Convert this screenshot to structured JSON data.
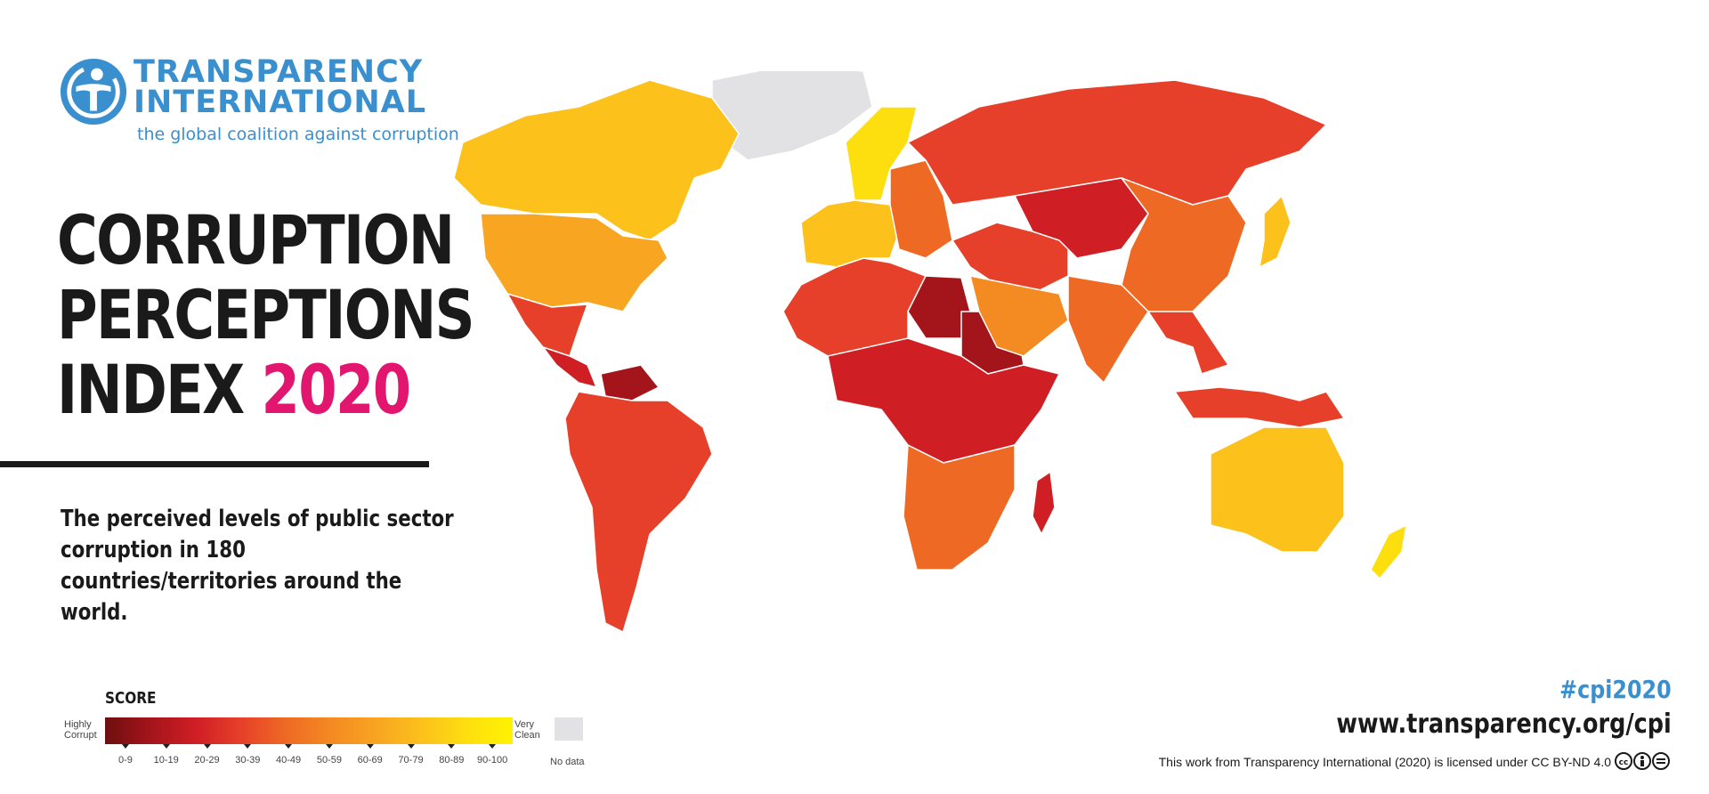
{
  "organization": {
    "name_line1": "TRANSPARENCY",
    "name_line2": "INTERNATIONAL",
    "tagline": "the global coalition against corruption",
    "brand_color": "#3a8fce",
    "icon": "transparency-logo-icon"
  },
  "title": {
    "line1": "CORRUPTION",
    "line2": "PERCEPTIONS",
    "line3_prefix": "INDEX",
    "year": "2020",
    "year_color": "#e3166f"
  },
  "description": "The perceived levels of public sector corruption in 180 countries/territories around the world.",
  "legend": {
    "title": "SCORE",
    "low_label": "Highly Corrupt",
    "high_label": "Very Clean",
    "no_data_label": "No data",
    "no_data_color": "#e2e2e4",
    "ranges": [
      {
        "label": "0-9",
        "color": "#6e0f0f"
      },
      {
        "label": "10-19",
        "color": "#a4141b"
      },
      {
        "label": "20-29",
        "color": "#d01e25"
      },
      {
        "label": "30-39",
        "color": "#e6402a"
      },
      {
        "label": "40-49",
        "color": "#ee6a24"
      },
      {
        "label": "50-59",
        "color": "#f48a22"
      },
      {
        "label": "60-69",
        "color": "#f8a521"
      },
      {
        "label": "70-79",
        "color": "#fcc11b"
      },
      {
        "label": "80-89",
        "color": "#fddf0f"
      },
      {
        "label": "90-100",
        "color": "#fff200"
      }
    ]
  },
  "map": {
    "regions": [
      {
        "name": "Canada",
        "range": "70-79"
      },
      {
        "name": "United States",
        "range": "60-69"
      },
      {
        "name": "Mexico",
        "range": "30-39"
      },
      {
        "name": "Central America",
        "range": "20-29"
      },
      {
        "name": "Venezuela",
        "range": "10-19"
      },
      {
        "name": "South America",
        "range": "30-39"
      },
      {
        "name": "Greenland",
        "range": "no-data"
      },
      {
        "name": "Nordic countries",
        "range": "80-89"
      },
      {
        "name": "Western Europe",
        "range": "70-79"
      },
      {
        "name": "Eastern Europe",
        "range": "40-49"
      },
      {
        "name": "Russia",
        "range": "30-39"
      },
      {
        "name": "North Africa",
        "range": "30-39"
      },
      {
        "name": "Libya",
        "range": "10-19"
      },
      {
        "name": "Sudan",
        "range": "10-19"
      },
      {
        "name": "Central Africa",
        "range": "20-29"
      },
      {
        "name": "Southern Africa",
        "range": "40-49"
      },
      {
        "name": "Middle East",
        "range": "30-39"
      },
      {
        "name": "Arabian Peninsula",
        "range": "50-59"
      },
      {
        "name": "Central Asia",
        "range": "20-29"
      },
      {
        "name": "China",
        "range": "40-49"
      },
      {
        "name": "India",
        "range": "40-49"
      },
      {
        "name": "Southeast Asia",
        "range": "30-39"
      },
      {
        "name": "Japan",
        "range": "70-79"
      },
      {
        "name": "Australia",
        "range": "70-79"
      },
      {
        "name": "New Zealand",
        "range": "80-89"
      }
    ]
  },
  "footer": {
    "hashtag": "#cpi2020",
    "website": "www.transparency.org/cpi",
    "license": "This work from Transparency International (2020) is licensed under CC BY-ND 4.0",
    "license_icons": [
      "cc-icon",
      "by-icon",
      "nd-icon"
    ]
  }
}
